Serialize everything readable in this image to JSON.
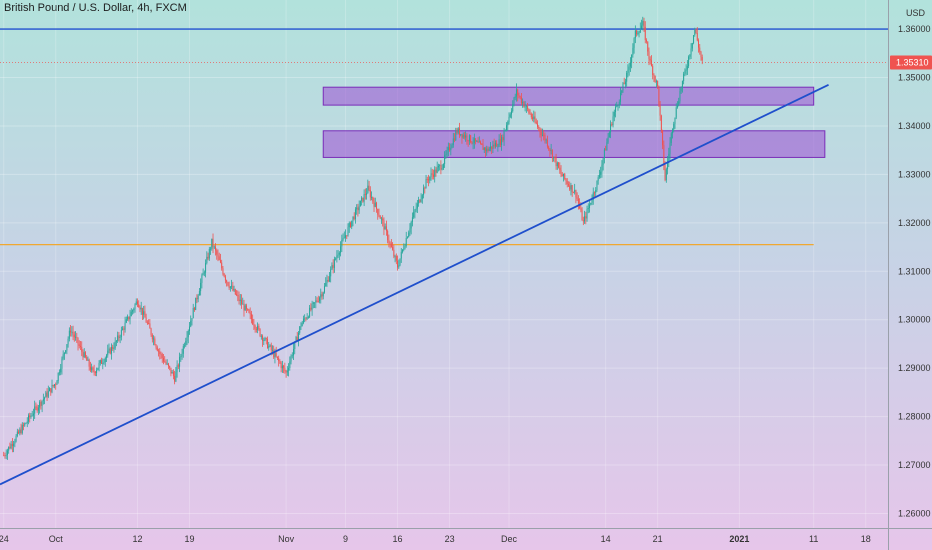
{
  "chart_data": {
    "type": "candlestick",
    "title": "British Pound / U.S. Dollar, 4h, FXCM",
    "currency": "USD",
    "ylim": [
      1.257,
      1.366
    ],
    "y_ticks": [
      "1.26000",
      "1.27000",
      "1.28000",
      "1.29000",
      "1.30000",
      "1.31000",
      "1.32000",
      "1.33000",
      "1.34000",
      "1.35000",
      "1.36000"
    ],
    "x_ticks": [
      {
        "label": "24",
        "day": 0
      },
      {
        "label": "Oct",
        "day": 7
      },
      {
        "label": "12",
        "day": 18
      },
      {
        "label": "19",
        "day": 25
      },
      {
        "label": "Nov",
        "day": 38
      },
      {
        "label": "9",
        "day": 46
      },
      {
        "label": "16",
        "day": 53
      },
      {
        "label": "23",
        "day": 60
      },
      {
        "label": "Dec",
        "day": 68
      },
      {
        "label": "14",
        "day": 81
      },
      {
        "label": "21",
        "day": 88
      },
      {
        "label": "2021",
        "day": 99,
        "bold": true
      },
      {
        "label": "11",
        "day": 109
      },
      {
        "label": "18",
        "day": 116
      }
    ],
    "xlim_days": [
      -0.5,
      119
    ],
    "last_price": "1.35310",
    "last_price_value": 1.3531,
    "colors": {
      "up": "#26a69a",
      "down": "#ef5350",
      "trendline": "#1f4fcc",
      "support": "#f0a830",
      "resistance": "#2050d0",
      "zone_fill": "#9c4fd4",
      "zone_stroke": "#7a2cb8",
      "price_tag": "#ef5350"
    },
    "support_line": {
      "price": 1.3155,
      "day_start": -0.5,
      "day_end": 109
    },
    "resistance_line": {
      "price": 1.36
    },
    "trendline": {
      "day1": -0.5,
      "price1": 1.266,
      "day2": 111,
      "price2": 1.3485
    },
    "zones": [
      {
        "day_start": 43,
        "day_end": 109,
        "price_top": 1.348,
        "price_bottom": 1.3443
      },
      {
        "day_start": 43,
        "day_end": 110.5,
        "price_top": 1.339,
        "price_bottom": 1.3335
      }
    ],
    "path_anchors": [
      [
        0,
        1.272
      ],
      [
        4,
        1.281
      ],
      [
        7,
        1.287
      ],
      [
        9,
        1.298
      ],
      [
        12,
        1.289
      ],
      [
        15,
        1.295
      ],
      [
        18,
        1.304
      ],
      [
        21,
        1.293
      ],
      [
        23,
        1.288
      ],
      [
        25,
        1.299
      ],
      [
        28,
        1.316
      ],
      [
        30,
        1.308
      ],
      [
        33,
        1.301
      ],
      [
        35,
        1.296
      ],
      [
        38,
        1.289
      ],
      [
        40,
        1.299
      ],
      [
        43,
        1.306
      ],
      [
        45,
        1.314
      ],
      [
        47,
        1.321
      ],
      [
        49,
        1.327
      ],
      [
        51,
        1.32
      ],
      [
        53,
        1.311
      ],
      [
        55,
        1.321
      ],
      [
        57,
        1.329
      ],
      [
        59,
        1.332
      ],
      [
        61,
        1.339
      ],
      [
        63,
        1.337
      ],
      [
        65,
        1.335
      ],
      [
        67,
        1.337
      ],
      [
        69,
        1.347
      ],
      [
        71,
        1.342
      ],
      [
        73,
        1.337
      ],
      [
        75,
        1.33
      ],
      [
        77,
        1.326
      ],
      [
        78,
        1.32
      ],
      [
        80,
        1.329
      ],
      [
        82,
        1.342
      ],
      [
        84,
        1.351
      ],
      [
        85,
        1.359
      ],
      [
        86,
        1.361
      ],
      [
        87,
        1.353
      ],
      [
        88,
        1.348
      ],
      [
        89,
        1.329
      ],
      [
        90,
        1.34
      ],
      [
        91,
        1.347
      ],
      [
        92,
        1.353
      ],
      [
        93,
        1.36
      ],
      [
        94,
        1.353
      ]
    ]
  }
}
